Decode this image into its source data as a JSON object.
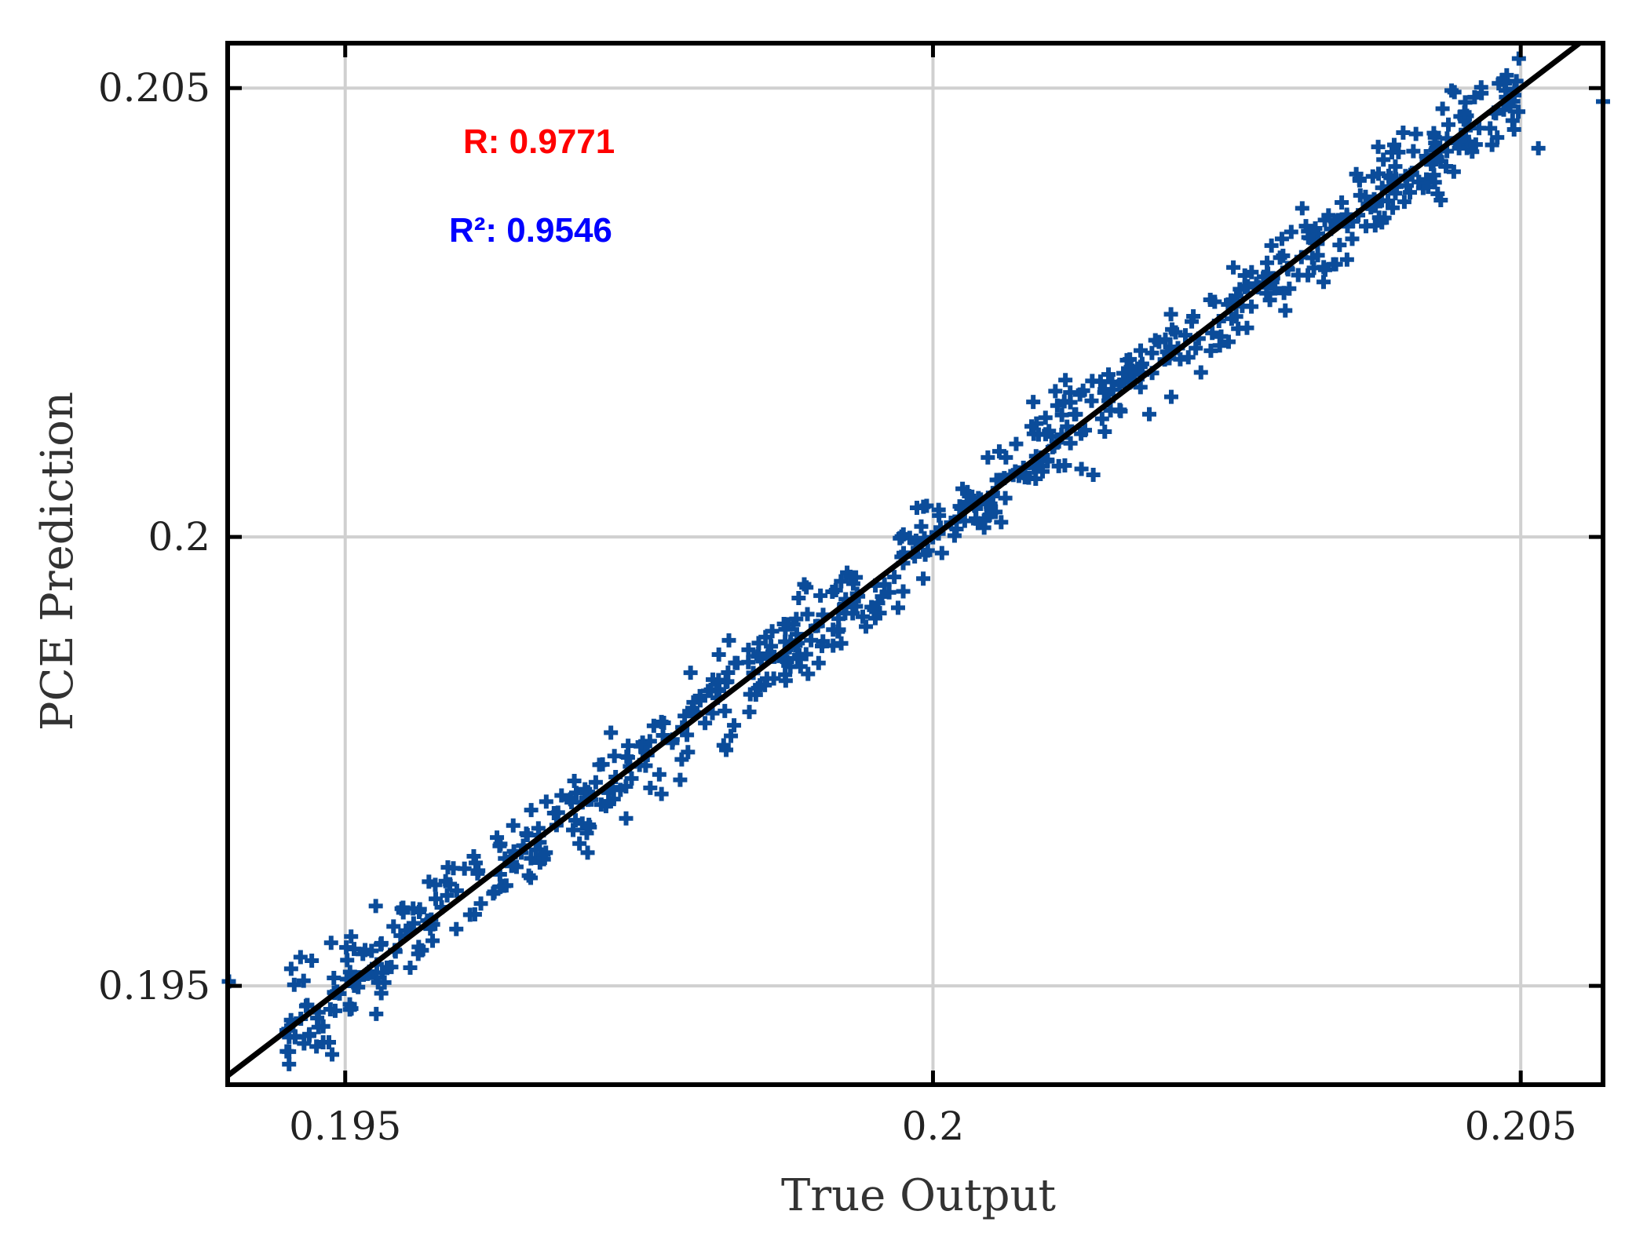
{
  "chart_data": {
    "type": "scatter",
    "xlabel": "True Output",
    "ylabel": "PCE Prediction",
    "xlim": [
      0.194,
      0.2057
    ],
    "ylim": [
      0.1939,
      0.2055
    ],
    "x_ticks": [
      0.195,
      0.2,
      0.205
    ],
    "y_ticks": [
      0.195,
      0.2,
      0.205
    ],
    "x_tick_labels": [
      "0.195",
      "0.2",
      "0.205"
    ],
    "y_tick_labels": [
      "0.195",
      "0.2",
      "0.205"
    ],
    "grid": true,
    "annotations": {
      "r_text": "R: 0.9771",
      "r2_text": "R²: 0.9546"
    },
    "reference_line": {
      "slope": 1,
      "intercept": 0,
      "color": "#000000"
    },
    "series": [
      {
        "marker": "+",
        "color": "#0b4c9a",
        "n_points": 700,
        "x": [
          0.19401,
          0.19454,
          0.19462,
          0.19488,
          0.19505,
          0.19526,
          0.19548,
          0.19577,
          0.19592,
          0.19611,
          0.19632,
          0.19655,
          0.19681,
          0.19704,
          0.19729,
          0.19753,
          0.19771,
          0.19802,
          0.19825,
          0.19851,
          0.19878,
          0.19902,
          0.19926,
          0.19951,
          0.19975,
          0.20003,
          0.20027,
          0.20051,
          0.20078,
          0.20103,
          0.20126,
          0.20151,
          0.20178,
          0.20201,
          0.20226,
          0.20251,
          0.20277,
          0.20302,
          0.20327,
          0.20352,
          0.20378,
          0.20402,
          0.20427,
          0.20452,
          0.2048,
          0.20515,
          0.2057
        ],
        "y": [
          0.19505,
          0.19519,
          0.19532,
          0.19548,
          0.19555,
          0.19589,
          0.19586,
          0.19597,
          0.19631,
          0.19637,
          0.19658,
          0.19668,
          0.19693,
          0.19719,
          0.19756,
          0.19771,
          0.19793,
          0.19818,
          0.19839,
          0.19867,
          0.19877,
          0.19901,
          0.19922,
          0.19946,
          0.19982,
          0.20005,
          0.20018,
          0.20049,
          0.20071,
          0.20101,
          0.20115,
          0.20141,
          0.20181,
          0.20199,
          0.20221,
          0.20259,
          0.20278,
          0.20298,
          0.20332,
          0.20359,
          0.20374,
          0.20402,
          0.20425,
          0.20442,
          0.20445,
          0.20433,
          0.20485
        ]
      }
    ]
  }
}
